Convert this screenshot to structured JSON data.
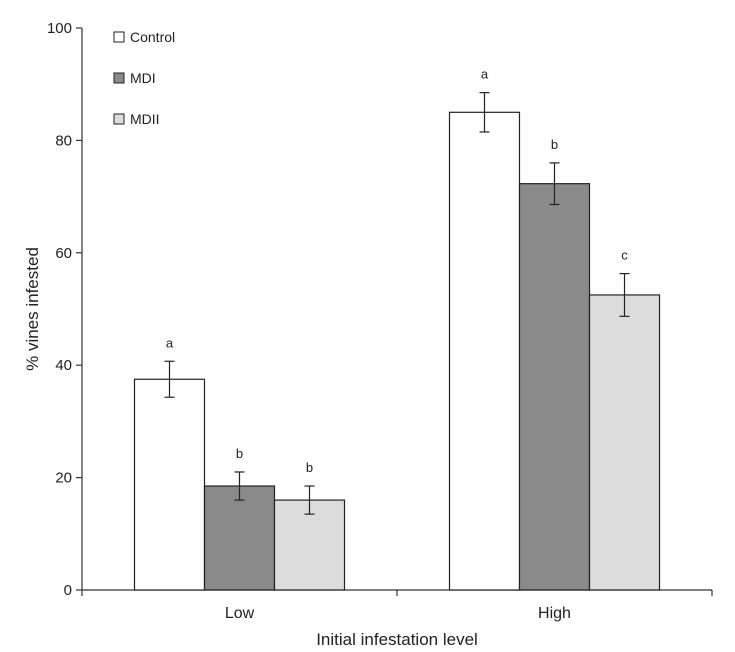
{
  "chart_data": {
    "type": "bar",
    "title": "",
    "xlabel": "Initial infestation level",
    "ylabel": "% vines infested",
    "ylim": [
      0,
      100
    ],
    "yticks": [
      0,
      20,
      40,
      60,
      80,
      100
    ],
    "categories": [
      "Low",
      "High"
    ],
    "series": [
      {
        "name": "Control",
        "color": "#ffffff",
        "values": [
          37.5,
          85.0
        ],
        "errors": [
          3.2,
          3.5
        ],
        "labels": [
          "a",
          "a"
        ]
      },
      {
        "name": "MDI",
        "color": "#8a8a8a",
        "values": [
          18.5,
          72.3
        ],
        "errors": [
          2.5,
          3.7
        ],
        "labels": [
          "b",
          "b"
        ]
      },
      {
        "name": "MDII",
        "color": "#dcdcdc",
        "values": [
          16.0,
          52.5
        ],
        "errors": [
          2.5,
          3.8
        ],
        "labels": [
          "b",
          "c"
        ]
      }
    ],
    "legend_position": "top-left",
    "grid": false
  }
}
